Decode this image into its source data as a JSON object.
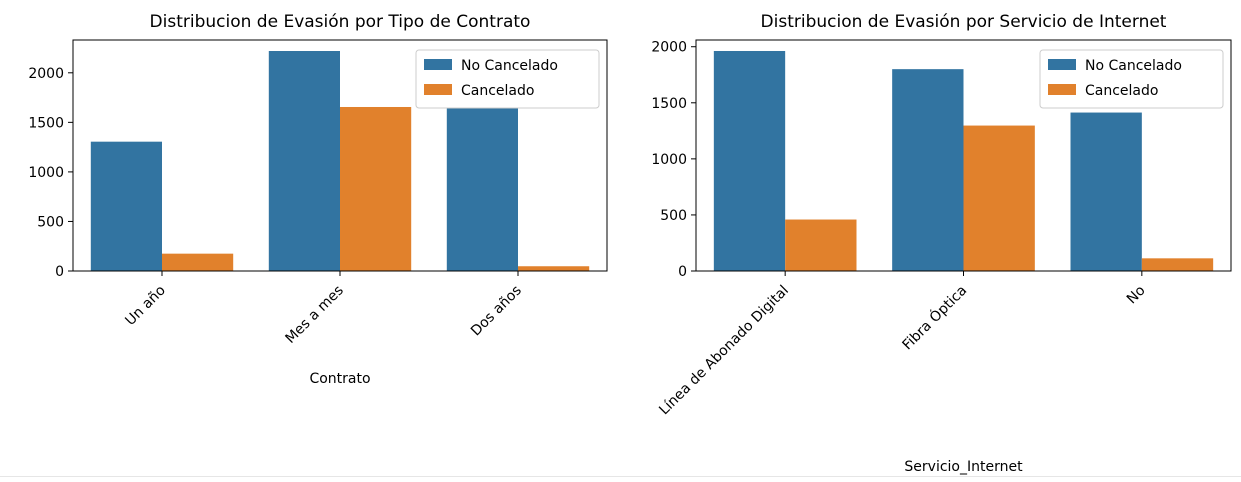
{
  "chart_data": [
    {
      "type": "bar",
      "title": "Distribucion de Evasión por Tipo de Contrato",
      "xlabel": "Contrato",
      "ylabel": "",
      "categories": [
        "Un año",
        "Mes a mes",
        "Dos años"
      ],
      "series": [
        {
          "name": "No Cancelado",
          "color": "#3274a1",
          "values": [
            1305,
            2220,
            1645
          ]
        },
        {
          "name": "Cancelado",
          "color": "#e1812c",
          "values": [
            175,
            1655,
            48
          ]
        }
      ],
      "ylim": [
        0,
        2331
      ],
      "yticks": [
        0,
        500,
        1000,
        1500,
        2000
      ],
      "ytick_labels": [
        "0",
        "500",
        "1000",
        "1500",
        "2000"
      ],
      "legend": "top-right",
      "grid": false
    },
    {
      "type": "bar",
      "title": "Distribucion de Evasión por Servicio de Internet",
      "xlabel": "Servicio_Internet",
      "ylabel": "",
      "categories": [
        "Línea de Abonado Digital",
        "Fibra Óptica",
        "No"
      ],
      "series": [
        {
          "name": "No Cancelado",
          "color": "#3274a1",
          "values": [
            1962,
            1800,
            1413
          ]
        },
        {
          "name": "Cancelado",
          "color": "#e1812c",
          "values": [
            459,
            1297,
            113
          ]
        }
      ],
      "ylim": [
        0,
        2060
      ],
      "yticks": [
        0,
        500,
        1000,
        1500,
        2000
      ],
      "ytick_labels": [
        "0",
        "500",
        "1000",
        "1500",
        "2000"
      ],
      "legend": "top-right",
      "grid": false
    }
  ]
}
